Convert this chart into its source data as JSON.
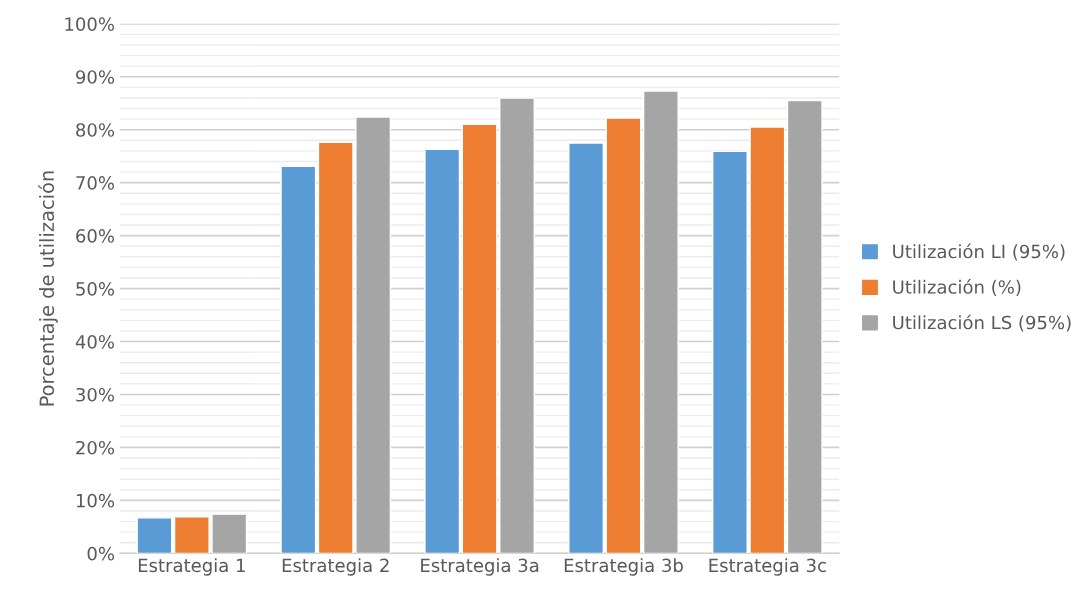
{
  "chart_data": {
    "type": "bar",
    "ylabel": "Porcentaje de utilización",
    "categories": [
      "Estrategia 1",
      "Estrategia 2",
      "Estrategia 3a",
      "Estrategia 3b",
      "Estrategia 3c"
    ],
    "series": [
      {
        "name": "Utilización LI (95%)",
        "color": "#5b9bd5",
        "values": [
          6.7,
          73.1,
          76.3,
          77.5,
          75.9
        ]
      },
      {
        "name": "Utilización (%)",
        "color": "#ed7d31",
        "values": [
          6.9,
          77.6,
          81.0,
          82.2,
          80.5
        ]
      },
      {
        "name": "Utilización LS (95%)",
        "color": "#a5a5a5",
        "values": [
          7.4,
          82.4,
          86.0,
          87.3,
          85.5
        ]
      }
    ],
    "ylim": [
      0,
      100
    ],
    "yticks": [
      {
        "value": 0,
        "label": "0%"
      },
      {
        "value": 10,
        "label": "10%"
      },
      {
        "value": 20,
        "label": "20%"
      },
      {
        "value": 30,
        "label": "30%"
      },
      {
        "value": 40,
        "label": "40%"
      },
      {
        "value": 50,
        "label": "50%"
      },
      {
        "value": 60,
        "label": "60%"
      },
      {
        "value": 70,
        "label": "70%"
      },
      {
        "value": 80,
        "label": "80%"
      },
      {
        "value": 90,
        "label": "90%"
      },
      {
        "value": 100,
        "label": "100%"
      }
    ],
    "grid": "y",
    "legend": "right"
  }
}
